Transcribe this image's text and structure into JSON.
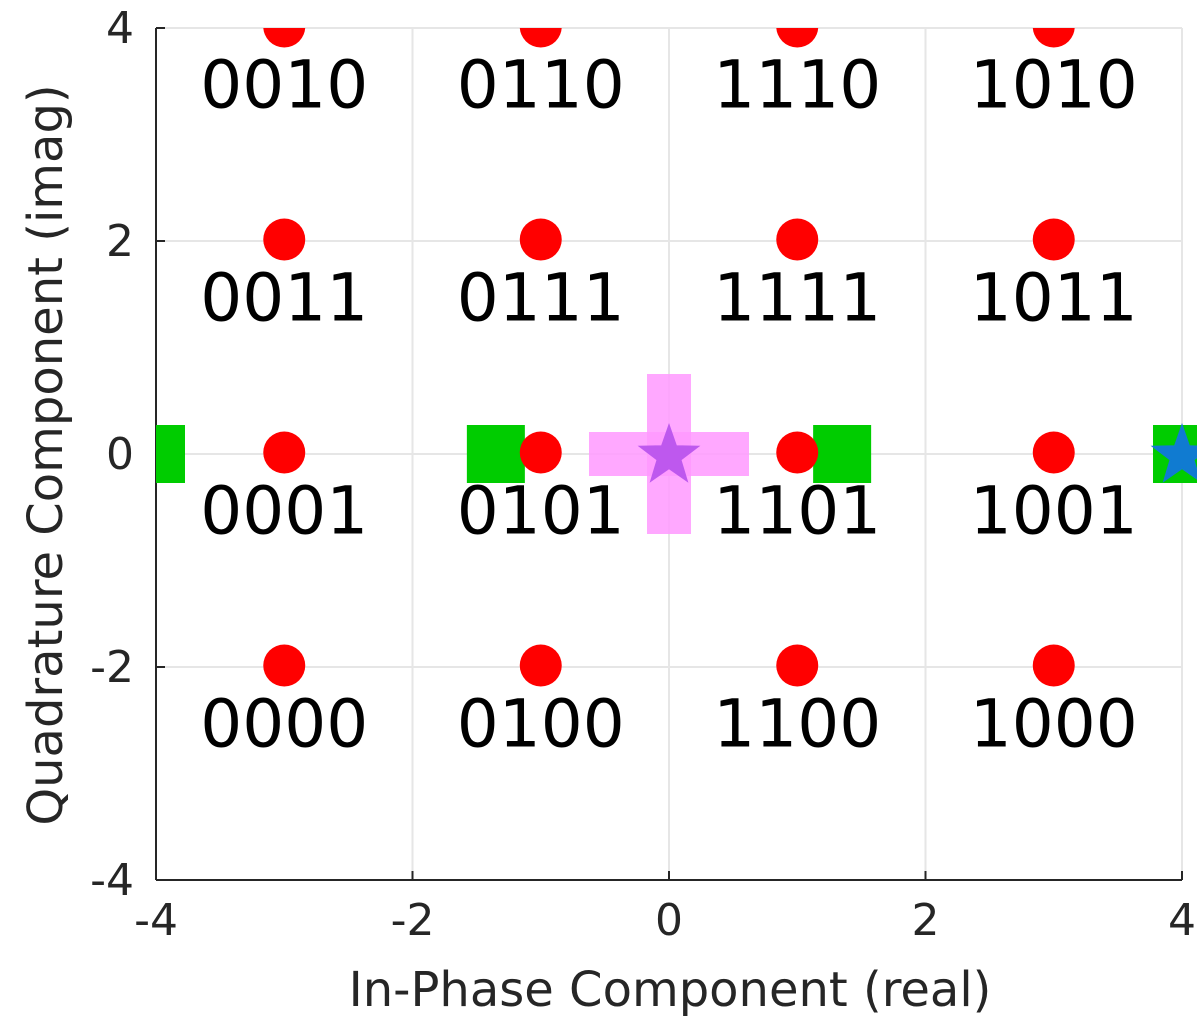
{
  "chart_data": {
    "type": "scatter",
    "xlabel": "In-Phase Component (real)",
    "ylabel": "Quadrature Component (imag)",
    "xlim": [
      -4,
      4
    ],
    "ylim": [
      -4,
      4
    ],
    "x_ticks": [
      "-4",
      "-2",
      "0",
      "2",
      "4"
    ],
    "y_ticks": [
      "4",
      "2",
      "0",
      "-2",
      "-4"
    ],
    "grid": true,
    "colors": {
      "constellation": "#ff0000",
      "squares": "#00cc00",
      "plus": "#ff99ff",
      "star_center": "#bb55ee",
      "star_edge": "#1177dd",
      "axis": "#262626",
      "grid": "#e6e6e6"
    },
    "constellation": [
      {
        "x": -3,
        "y": 3,
        "label": "0010"
      },
      {
        "x": -1,
        "y": 3,
        "label": "0110"
      },
      {
        "x": 1,
        "y": 3,
        "label": "1110"
      },
      {
        "x": 3,
        "y": 3,
        "label": "1010"
      },
      {
        "x": -3,
        "y": 1,
        "label": "0011"
      },
      {
        "x": -1,
        "y": 1,
        "label": "0111"
      },
      {
        "x": 1,
        "y": 1,
        "label": "1111"
      },
      {
        "x": 3,
        "y": 1,
        "label": "1011"
      },
      {
        "x": -3,
        "y": -1,
        "label": "0001"
      },
      {
        "x": -1,
        "y": -1,
        "label": "0101"
      },
      {
        "x": 1,
        "y": -1,
        "label": "1101"
      },
      {
        "x": 3,
        "y": -1,
        "label": "1001"
      },
      {
        "x": -3,
        "y": -3,
        "label": "0000"
      },
      {
        "x": -1,
        "y": -3,
        "label": "0100"
      },
      {
        "x": 1,
        "y": -3,
        "label": "1100"
      },
      {
        "x": 3,
        "y": -3,
        "label": "1000"
      }
    ],
    "squares": [
      {
        "x": -4,
        "y": 0
      },
      {
        "x": -1.35,
        "y": 0
      },
      {
        "x": 1.35,
        "y": 0
      },
      {
        "x": 4,
        "y": 0
      }
    ],
    "plus": {
      "x": 0,
      "y": 0
    },
    "stars": [
      {
        "x": 0,
        "y": 0,
        "color_key": "star_center"
      },
      {
        "x": 4,
        "y": 0,
        "color_key": "star_edge"
      }
    ]
  }
}
